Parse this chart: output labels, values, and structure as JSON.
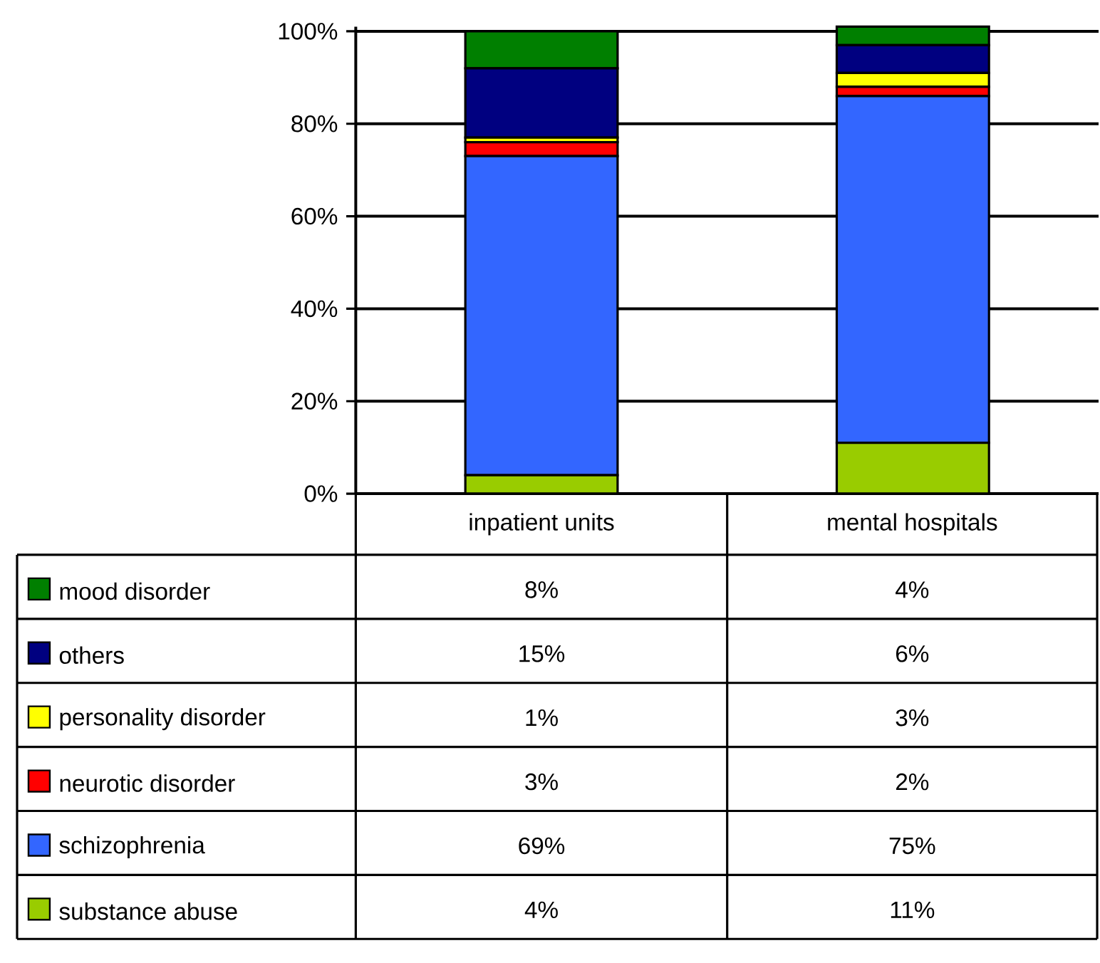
{
  "chart_data": {
    "type": "bar",
    "stacked": true,
    "categories": [
      "inpatient units",
      "mental hospitals"
    ],
    "series": [
      {
        "name": "substance abuse",
        "color": "#99cc00",
        "values": [
          4,
          11
        ],
        "value_labels": [
          "4%",
          "11%"
        ]
      },
      {
        "name": "schizophrenia",
        "color": "#3366ff",
        "values": [
          69,
          75
        ],
        "value_labels": [
          "69%",
          "75%"
        ]
      },
      {
        "name": "neurotic disorder",
        "color": "#ff0000",
        "values": [
          3,
          2
        ],
        "value_labels": [
          "3%",
          "2%"
        ]
      },
      {
        "name": "personality disorder",
        "color": "#ffff00",
        "values": [
          1,
          3
        ],
        "value_labels": [
          "1%",
          "3%"
        ]
      },
      {
        "name": "others",
        "color": "#000080",
        "values": [
          15,
          6
        ],
        "value_labels": [
          "15%",
          "6%"
        ]
      },
      {
        "name": "mood disorder",
        "color": "#007f00",
        "values": [
          8,
          4
        ],
        "value_labels": [
          "8%",
          "4%"
        ]
      }
    ],
    "ylim": [
      0,
      101
    ],
    "yticks": [
      {
        "value": 0,
        "label": "0%"
      },
      {
        "value": 20,
        "label": "20%"
      },
      {
        "value": 40,
        "label": "40%"
      },
      {
        "value": 60,
        "label": "60%"
      },
      {
        "value": 80,
        "label": "80%"
      },
      {
        "value": 100,
        "label": "100%"
      }
    ],
    "grid": "y",
    "legend": "bottom"
  }
}
